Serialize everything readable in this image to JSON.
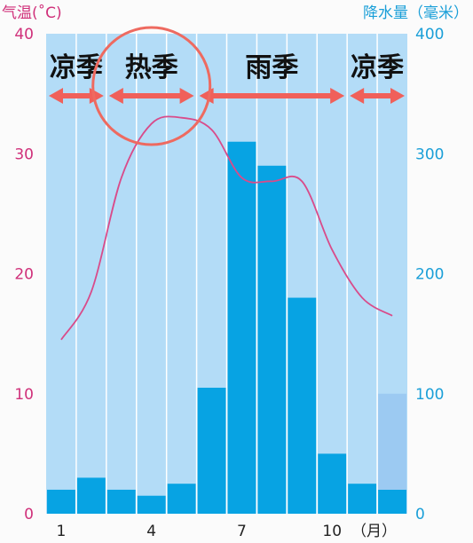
{
  "chart_data": {
    "type": "bar+line",
    "title": "",
    "x": [
      1,
      2,
      3,
      4,
      5,
      6,
      7,
      8,
      9,
      10,
      11,
      12
    ],
    "x_tick_labels": [
      "1",
      "4",
      "7",
      "10"
    ],
    "x_tick_months": [
      1,
      4,
      7,
      10
    ],
    "x_unit": "（月）",
    "precipitation": {
      "axis": "right",
      "ylabel": "降水量（毫米）",
      "ylim": [
        0,
        400
      ],
      "ticks": [
        0,
        100,
        200,
        300,
        400
      ],
      "values": [
        20,
        30,
        20,
        15,
        25,
        105,
        310,
        290,
        180,
        50,
        25,
        20
      ]
    },
    "temperature": {
      "axis": "left",
      "ylabel": "气温(˚C)",
      "ylim": [
        0,
        40
      ],
      "ticks": [
        0,
        10,
        20,
        30,
        40
      ],
      "values": [
        14.5,
        18.5,
        28,
        32.5,
        33,
        32,
        28,
        27.7,
        27.7,
        22,
        18,
        16.5
      ]
    },
    "seasons": [
      {
        "label": "凉季",
        "start": 1,
        "end": 2
      },
      {
        "label": "热季",
        "start": 3,
        "end": 5
      },
      {
        "label": "雨季",
        "start": 6,
        "end": 10
      },
      {
        "label": "凉季",
        "start": 11,
        "end": 12
      }
    ],
    "highlight": {
      "season_index": 1
    },
    "colors": {
      "bar": "#07a3e3",
      "bar_faded": "#9ccaf2",
      "plot_bg": "#b3dcf7",
      "temperature_line": "#d94b8a",
      "left_axis": "#d0307a",
      "right_axis": "#1a9fd8",
      "season_arrow": "#f0605a",
      "highlight_circle": "#ee6a60"
    },
    "grid": true
  }
}
